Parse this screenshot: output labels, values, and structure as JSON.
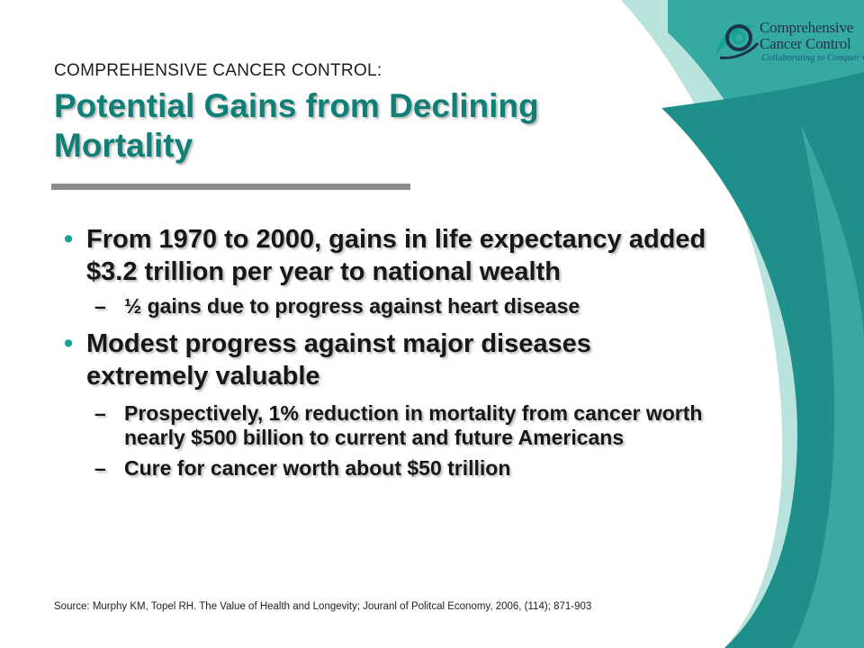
{
  "logo": {
    "line1": "Comprehensive",
    "line2": "Cancer Control",
    "tagline": "Collaborating to Conquer Cancer"
  },
  "slide": {
    "kicker": "COMPREHENSIVE CANCER CONTROL:",
    "title": "Potential Gains from Declining Mortality",
    "bullets": [
      {
        "marker": "•",
        "text": "From 1970 to 2000, gains in life expectancy added $3.2 trillion per year to national wealth",
        "sub": [
          {
            "marker": "–",
            "text": "½ gains due to progress against heart disease"
          }
        ]
      },
      {
        "marker": "•",
        "text": "Modest progress against major diseases extremely valuable",
        "sub": [
          {
            "marker": "–",
            "text": "Prospectively, 1% reduction in mortality from cancer worth nearly $500 billion to current and future Americans"
          },
          {
            "marker": "–",
            "text": "Cure for cancer worth about $50 trillion"
          }
        ]
      }
    ],
    "source": "Source: Murphy KM, Topel RH. The Value of Health and Longevity; Jouranl of Politcal Economy, 2006, (114); 871-903"
  },
  "colors": {
    "title": "#0f7f77",
    "accent_teal": "#15a196",
    "rule": "#8c8c8c"
  }
}
